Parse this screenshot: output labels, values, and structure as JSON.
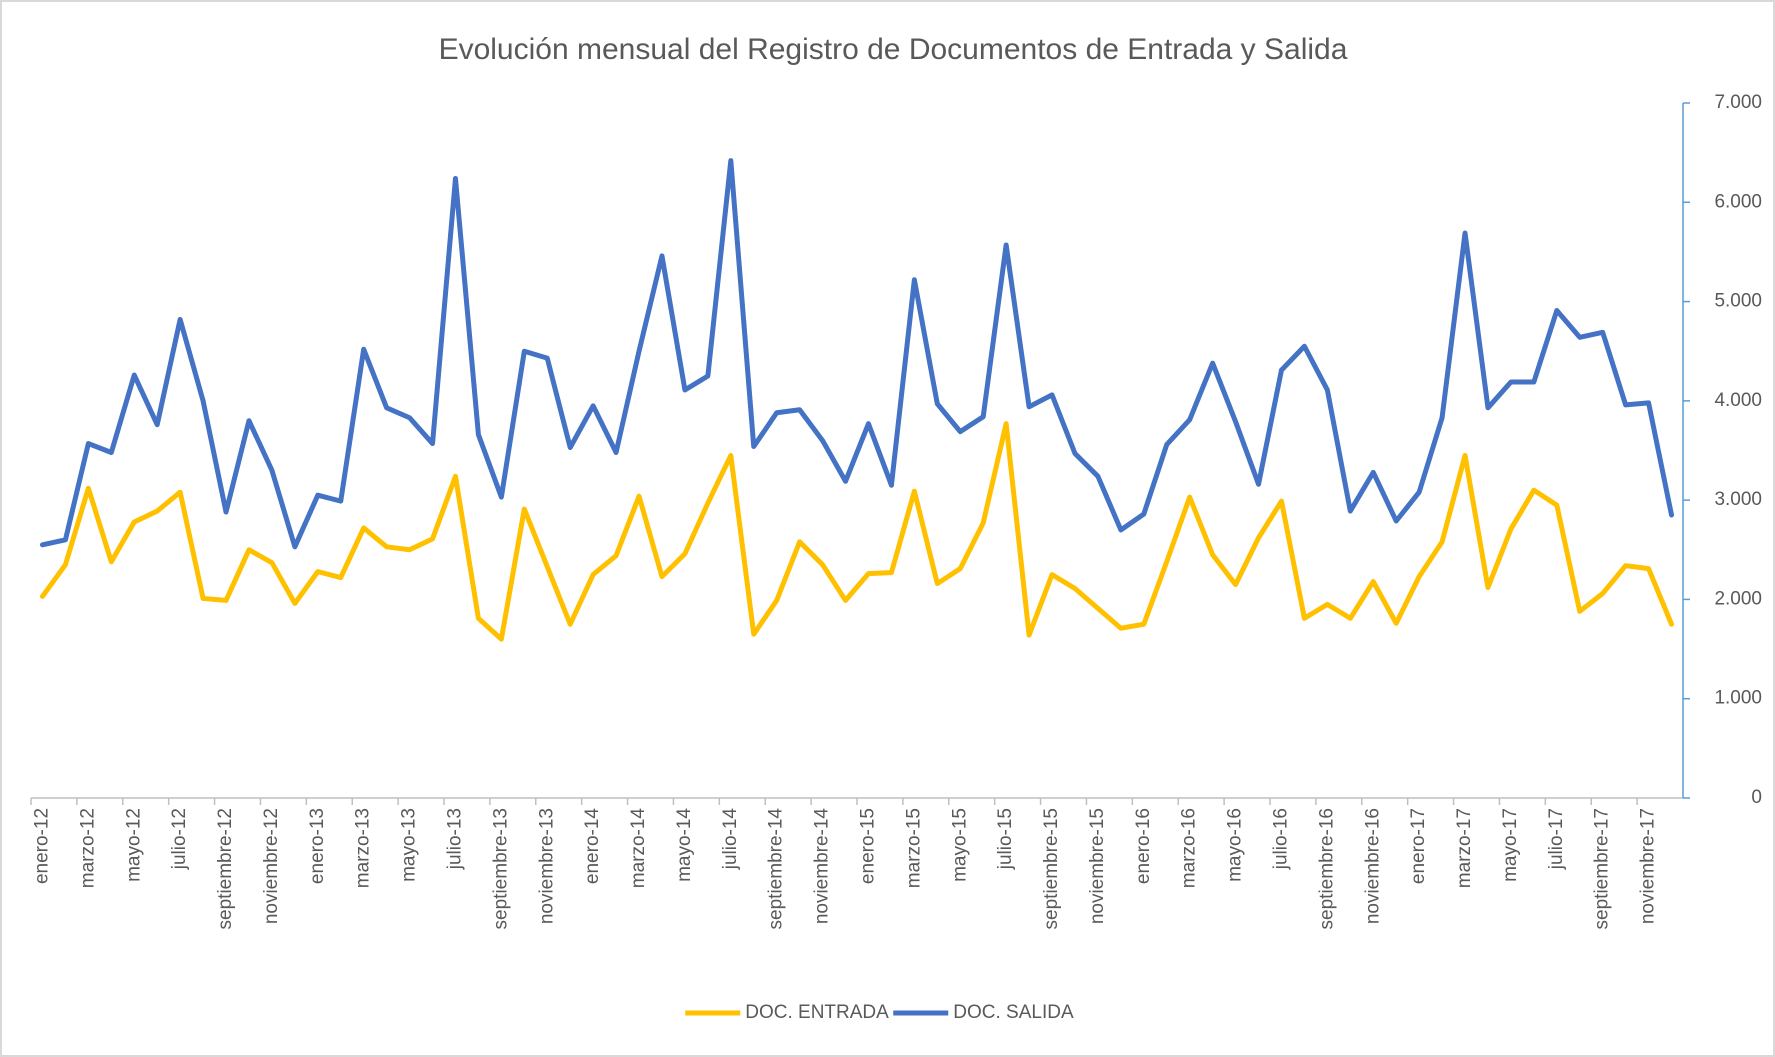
{
  "chart_data": {
    "type": "line",
    "title": "Evolución mensual del Registro de Documentos de Entrada y Salida",
    "categories": [
      "enero-12",
      null,
      "marzo-12",
      null,
      "mayo-12",
      null,
      "julio-12",
      null,
      "septiembre-12",
      null,
      "noviembre-12",
      null,
      "enero-13",
      null,
      "marzo-13",
      null,
      "mayo-13",
      null,
      "julio-13",
      null,
      "septiembre-13",
      null,
      "noviembre-13",
      null,
      "enero-14",
      null,
      "marzo-14",
      null,
      "mayo-14",
      null,
      "julio-14",
      null,
      "septiembre-14",
      null,
      "noviembre-14",
      null,
      "enero-15",
      null,
      "marzo-15",
      null,
      "mayo-15",
      null,
      "julio-15",
      null,
      "septiembre-15",
      null,
      "noviembre-15",
      null,
      "enero-16",
      null,
      "marzo-16",
      null,
      "mayo-16",
      null,
      "julio-16",
      null,
      "septiembre-16",
      null,
      "noviembre-16",
      null,
      "enero-17",
      null,
      "marzo-17",
      null,
      "mayo-17",
      null,
      "julio-17",
      null,
      "septiembre-17",
      null,
      "noviembre-17",
      null
    ],
    "series": [
      {
        "name": "DOC. ENTRADA",
        "color": "#ffc000",
        "values": [
          2030,
          2350,
          3120,
          2380,
          2780,
          2890,
          3080,
          2010,
          1990,
          2500,
          2370,
          1960,
          2280,
          2220,
          2720,
          2530,
          2500,
          2610,
          3240,
          1810,
          1600,
          2910,
          2330,
          1750,
          2250,
          2440,
          3040,
          2230,
          2460,
          2970,
          3450,
          1650,
          1990,
          2580,
          2350,
          1990,
          2260,
          2270,
          3090,
          2160,
          2310,
          2770,
          3770,
          1640,
          2250,
          2110,
          1910,
          1710,
          1750,
          2380,
          3030,
          2450,
          2150,
          2620,
          2990,
          1810,
          1950,
          1810,
          2180,
          1760,
          2230,
          2580,
          3450,
          2120,
          2710,
          3100,
          2950,
          1880,
          2060,
          2340,
          2310,
          1750
        ]
      },
      {
        "name": "DOC. SALIDA",
        "color": "#4472c4",
        "values": [
          2550,
          2600,
          3570,
          3480,
          4260,
          3760,
          4820,
          4000,
          2880,
          3800,
          3300,
          2530,
          3050,
          2990,
          4520,
          3930,
          3830,
          3570,
          6240,
          3660,
          3030,
          4500,
          4430,
          3530,
          3950,
          3480,
          4500,
          5460,
          4110,
          4250,
          6420,
          3540,
          3880,
          3910,
          3600,
          3190,
          3770,
          3150,
          5220,
          3970,
          3690,
          3840,
          5570,
          3940,
          4060,
          3470,
          3240,
          2700,
          2860,
          3560,
          3810,
          4380,
          3790,
          3160,
          4310,
          4550,
          4110,
          2890,
          3280,
          2790,
          3080,
          3830,
          5690,
          3930,
          4190,
          4190,
          4910,
          4640,
          4690,
          3960,
          3980,
          2850
        ]
      }
    ],
    "ylim": [
      0,
      7000
    ],
    "yticks": [
      0,
      {
        "value": 1000,
        "label": "1.000"
      },
      {
        "value": 2000,
        "label": "2.000"
      },
      {
        "value": 3000,
        "label": "3.000"
      },
      {
        "value": 4000,
        "label": "4.000"
      },
      {
        "value": 5000,
        "label": "5.000"
      },
      {
        "value": 6000,
        "label": "6.000"
      },
      {
        "value": 7000,
        "label": "7.000"
      }
    ],
    "y_axis_side": "right",
    "grid": false,
    "legend": "bottom"
  }
}
